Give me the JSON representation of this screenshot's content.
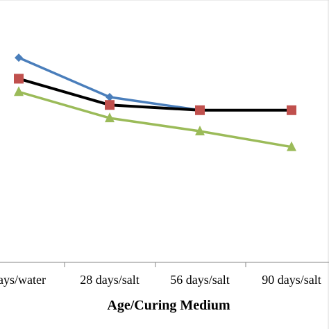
{
  "chart_data": {
    "type": "line",
    "title": "",
    "xlabel": "Age/Curing Medium",
    "ylabel": "",
    "categories": [
      "days/water",
      "28 days/salt",
      "56 days/salt",
      "90 days/salt"
    ],
    "ylim": [
      0,
      100
    ],
    "grid": false,
    "legend": "none",
    "series": [
      {
        "color": "#4a7ebb",
        "marker": "diamond",
        "values": [
          78,
          63,
          58,
          58
        ]
      },
      {
        "color": "#000000",
        "marker": "square",
        "values": [
          70,
          60,
          58,
          58
        ]
      },
      {
        "color": "#9bbb59",
        "marker": "triangle",
        "values": [
          65,
          55,
          50,
          44
        ]
      }
    ],
    "marker_colors": [
      "#4a7ebb",
      "#c0504d",
      "#9bbb59"
    ]
  }
}
